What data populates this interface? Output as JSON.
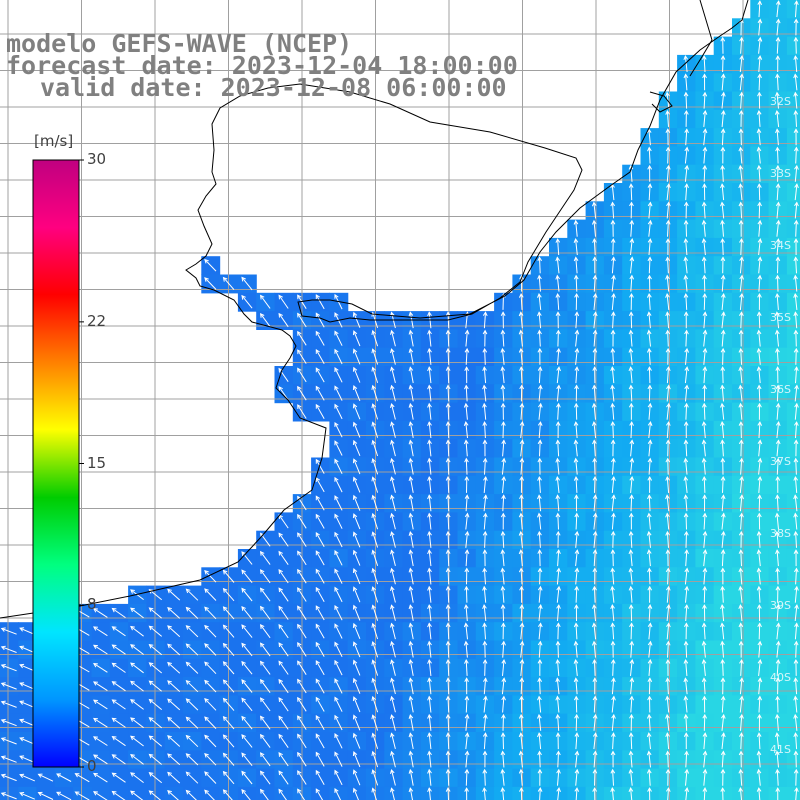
{
  "title": {
    "line1": "modelo GEFS-WAVE (NCEP)",
    "line2": "forecast date: 2023-12-04 18:00:00",
    "line3": "valid date: 2023-12-08 06:00:00"
  },
  "colorbar": {
    "unit": "[m/s]",
    "ticks": [
      {
        "value": 30,
        "label": "30"
      },
      {
        "value": 22,
        "label": "22"
      },
      {
        "value": 15,
        "label": "15"
      },
      {
        "value": 8,
        "label": "8"
      },
      {
        "value": 0,
        "label": "0"
      }
    ],
    "range": [
      0,
      30
    ],
    "gradient": [
      "#0000ff",
      "#0096ff",
      "#00e5ff",
      "#00ff80",
      "#00cc00",
      "#ffff00",
      "#ff8000",
      "#ff0000",
      "#ff0080",
      "#c00080"
    ]
  },
  "lat_labels": [
    "32S",
    "33S",
    "34S",
    "35S",
    "36S",
    "37S",
    "38S",
    "39S",
    "40S",
    "41S"
  ],
  "wind_direction": "north",
  "colors": {
    "land": "#ffffff",
    "coast": "#000000",
    "grid": "#a0a0a0",
    "arrow": "#ffffff",
    "sea_low": "#1a73ee",
    "sea_mid": "#12a8f0",
    "sea_high": "#22d4e6"
  }
}
